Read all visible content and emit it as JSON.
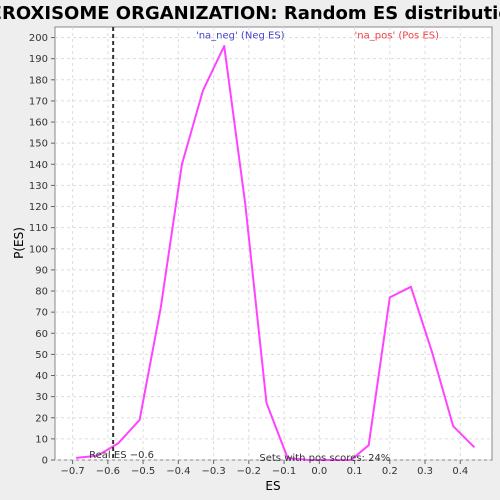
{
  "chart_data": {
    "type": "line",
    "title": "PEROXISOME ORGANIZATION: Random ES distribution",
    "xlabel": "ES",
    "ylabel": "P(ES)",
    "xlim": [
      -0.75,
      0.49
    ],
    "ylim": [
      0,
      205
    ],
    "x_ticks": [
      -0.7,
      -0.6,
      -0.5,
      -0.4,
      -0.3,
      -0.2,
      -0.1,
      0.0,
      0.1,
      0.2,
      0.3,
      0.4
    ],
    "x_tick_labels": [
      "−0.7",
      "−0.6",
      "−0.5",
      "−0.4",
      "−0.3",
      "−0.2",
      "−0.1",
      "0.0",
      "0.1",
      "0.2",
      "0.3",
      "0.4"
    ],
    "y_ticks": [
      0,
      10,
      20,
      30,
      40,
      50,
      60,
      70,
      80,
      90,
      100,
      110,
      120,
      130,
      140,
      150,
      160,
      170,
      180,
      190,
      200
    ],
    "grid": true,
    "series": [
      {
        "color": "#ff44ff",
        "x": [
          -0.69,
          -0.63,
          -0.57,
          -0.51,
          -0.45,
          -0.39,
          -0.33,
          -0.27,
          -0.21,
          -0.15,
          -0.09,
          -0.03,
          0.03,
          0.09,
          0.14,
          0.2,
          0.26,
          0.32,
          0.38,
          0.44
        ],
        "y": [
          1,
          2,
          8,
          19,
          72,
          140,
          175,
          196,
          121,
          27,
          1,
          0,
          0,
          0,
          7,
          77,
          82,
          51,
          16,
          6
        ]
      }
    ],
    "real_es": {
      "value": -0.585,
      "label": "Real ES −0.6",
      "color": "#333333"
    },
    "annotations": [
      {
        "text": "'na_neg' (Neg ES)",
        "color": "#4444cc",
        "x": -0.35,
        "y": 201
      },
      {
        "text": "'na_pos' (Pos ES)",
        "color": "#ee4444",
        "x": 0.1,
        "y": 201
      },
      {
        "text": "Sets with pos scores: 24%",
        "color": "#333333",
        "x": -0.17,
        "y": 1
      }
    ]
  }
}
